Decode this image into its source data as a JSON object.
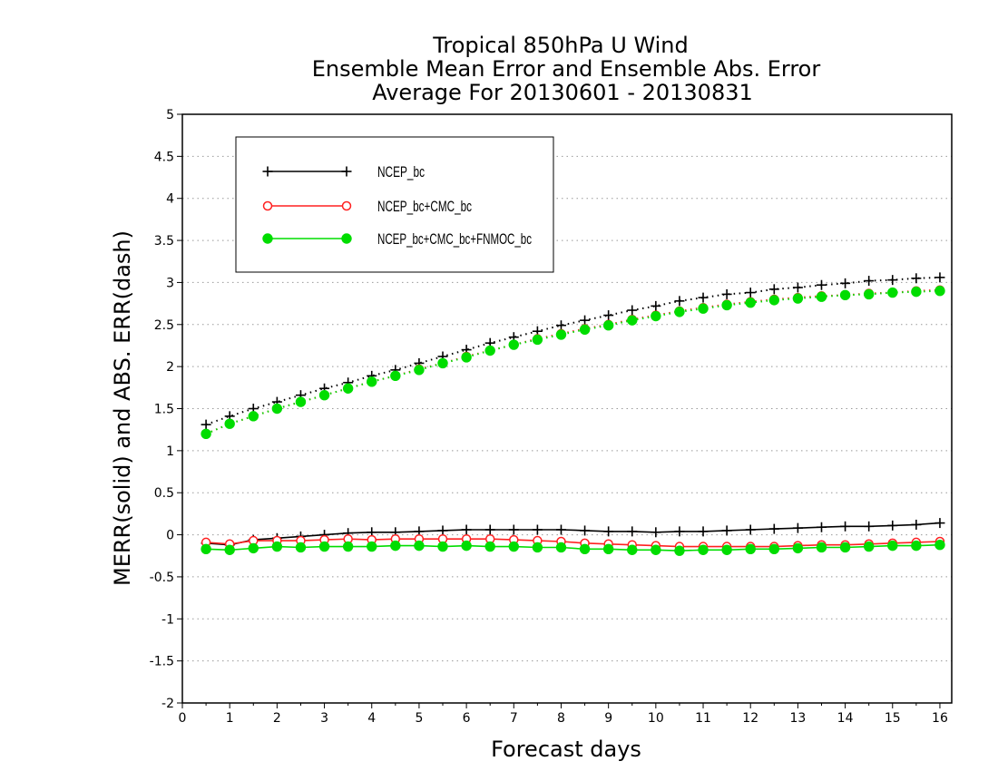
{
  "chart_data": {
    "type": "line",
    "title": [
      "Tropical 850hPa U Wind",
      "Ensemble Mean Error and Ensemble Abs. Error",
      "Average For 20130601 - 20130831"
    ],
    "xlabel": "Forecast days",
    "ylabel": "MERR(solid) and ABS. ERR(dash)",
    "xlim": [
      0,
      16.25
    ],
    "ylim": [
      -2,
      5
    ],
    "xticks": [
      0,
      1,
      2,
      3,
      4,
      5,
      6,
      7,
      8,
      9,
      10,
      11,
      12,
      13,
      14,
      15,
      16
    ],
    "yticks": [
      -2,
      -1.5,
      -1,
      -0.5,
      0,
      0.5,
      1,
      1.5,
      2,
      2.5,
      3,
      3.5,
      4,
      4.5,
      5
    ],
    "ytick_labels": [
      "-2",
      "-1.5",
      "-1",
      "-0.5",
      "0",
      "0.5",
      "1",
      "1.5",
      "2",
      "2.5",
      "3",
      "3.5",
      "4",
      "4.5",
      "5"
    ],
    "grid": "horizontal dotted",
    "legend_position": "top-left",
    "x": [
      0.5,
      1,
      1.5,
      2,
      2.5,
      3,
      3.5,
      4,
      4.5,
      5,
      5.5,
      6,
      6.5,
      7,
      7.5,
      8,
      8.5,
      9,
      9.5,
      10,
      10.5,
      11,
      11.5,
      12,
      12.5,
      13,
      13.5,
      14,
      14.5,
      15,
      15.5,
      16
    ],
    "series": [
      {
        "name": "NCEP_bc",
        "color": "#000000",
        "marker": "plus",
        "mean_error": [
          -0.1,
          -0.12,
          -0.06,
          -0.04,
          -0.02,
          0.0,
          0.02,
          0.03,
          0.03,
          0.04,
          0.05,
          0.06,
          0.06,
          0.06,
          0.06,
          0.06,
          0.05,
          0.04,
          0.04,
          0.03,
          0.04,
          0.04,
          0.05,
          0.06,
          0.07,
          0.08,
          0.09,
          0.1,
          0.1,
          0.11,
          0.12,
          0.14
        ],
        "abs_error": [
          1.31,
          1.41,
          1.5,
          1.58,
          1.66,
          1.74,
          1.81,
          1.89,
          1.96,
          2.04,
          2.12,
          2.2,
          2.28,
          2.35,
          2.42,
          2.49,
          2.55,
          2.61,
          2.67,
          2.72,
          2.78,
          2.82,
          2.86,
          2.88,
          2.92,
          2.94,
          2.97,
          2.99,
          3.02,
          3.03,
          3.05,
          3.06
        ]
      },
      {
        "name": "NCEP_bc+CMC_bc",
        "color": "#ff2020",
        "marker": "open-circle",
        "mean_error": [
          -0.09,
          -0.11,
          -0.07,
          -0.07,
          -0.07,
          -0.06,
          -0.05,
          -0.06,
          -0.05,
          -0.05,
          -0.05,
          -0.05,
          -0.05,
          -0.06,
          -0.07,
          -0.08,
          -0.1,
          -0.11,
          -0.12,
          -0.13,
          -0.14,
          -0.14,
          -0.14,
          -0.14,
          -0.14,
          -0.13,
          -0.12,
          -0.12,
          -0.11,
          -0.1,
          -0.09,
          -0.08
        ],
        "abs_error": [
          1.2,
          1.32,
          1.41,
          1.5,
          1.58,
          1.66,
          1.74,
          1.82,
          1.89,
          1.97,
          2.04,
          2.12,
          2.19,
          2.26,
          2.33,
          2.39,
          2.45,
          2.5,
          2.56,
          2.61,
          2.66,
          2.7,
          2.74,
          2.77,
          2.8,
          2.82,
          2.84,
          2.85,
          2.87,
          2.88,
          2.9,
          2.91
        ]
      },
      {
        "name": "NCEP_bc+CMC_bc+FNMOC_bc",
        "color": "#00dd00",
        "marker": "filled-circle",
        "mean_error": [
          -0.17,
          -0.18,
          -0.16,
          -0.14,
          -0.15,
          -0.14,
          -0.14,
          -0.14,
          -0.13,
          -0.13,
          -0.14,
          -0.13,
          -0.14,
          -0.14,
          -0.15,
          -0.15,
          -0.17,
          -0.17,
          -0.18,
          -0.18,
          -0.19,
          -0.18,
          -0.18,
          -0.17,
          -0.17,
          -0.16,
          -0.15,
          -0.15,
          -0.14,
          -0.13,
          -0.13,
          -0.12
        ],
        "abs_error": [
          1.2,
          1.32,
          1.41,
          1.5,
          1.58,
          1.66,
          1.74,
          1.82,
          1.89,
          1.96,
          2.04,
          2.11,
          2.19,
          2.26,
          2.32,
          2.38,
          2.44,
          2.49,
          2.55,
          2.6,
          2.65,
          2.69,
          2.73,
          2.76,
          2.79,
          2.81,
          2.83,
          2.85,
          2.86,
          2.88,
          2.89,
          2.9
        ]
      }
    ]
  }
}
